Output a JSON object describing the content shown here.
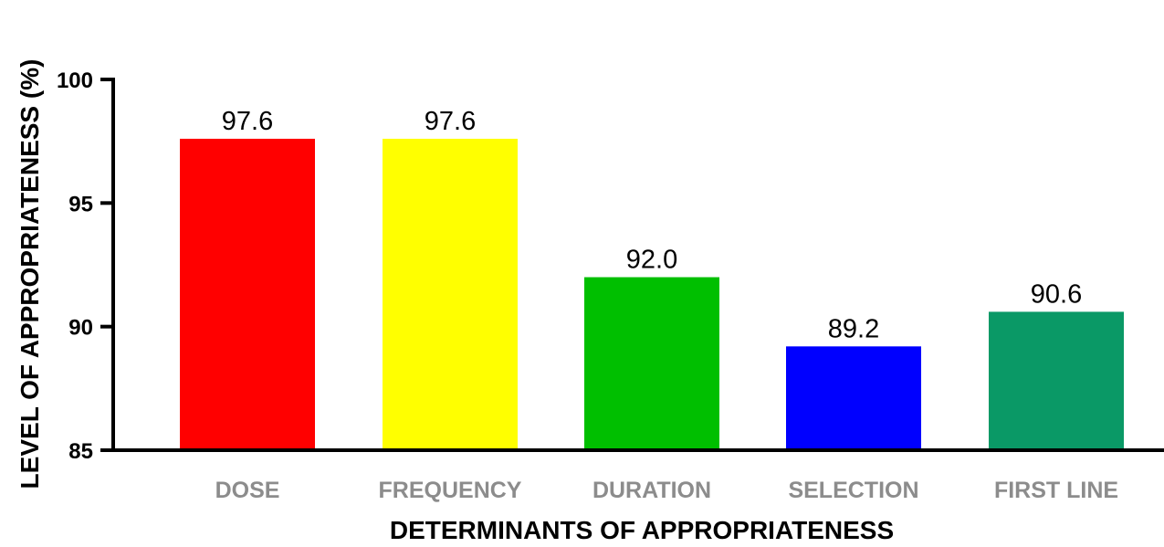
{
  "chart_data": {
    "type": "bar",
    "categories": [
      "DOSE",
      "FREQUENCY",
      "DURATION",
      "SELECTION",
      "FIRST LINE"
    ],
    "values": [
      97.6,
      97.6,
      92.0,
      89.2,
      90.6
    ],
    "value_labels": [
      "97.6",
      "97.6",
      "92.0",
      "89.2",
      "90.6"
    ],
    "colors": [
      "#ff0000",
      "#ffff00",
      "#00bf00",
      "#0000ff",
      "#0a9966"
    ],
    "xlabel": "DETERMINANTS OF APPROPRIATENESS",
    "ylabel": "LEVEL OF APPROPRIATENESS (%)",
    "ylim": [
      85,
      100
    ],
    "yticks": [
      85,
      90,
      95,
      100
    ],
    "grid": false,
    "legend": "none"
  }
}
